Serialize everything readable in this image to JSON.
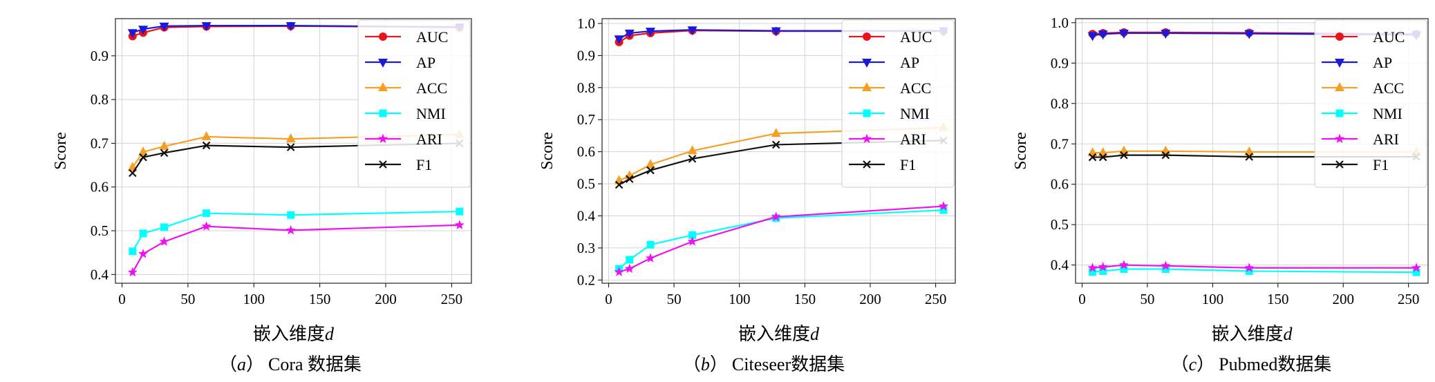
{
  "chart_data": [
    {
      "type": "line",
      "caption": {
        "letter": "a",
        "text": "Cora 数据集"
      },
      "xlabel": "嵌入维度",
      "xlabel_var": "d",
      "ylabel": "Score",
      "xlim": [
        -5,
        265
      ],
      "ylim": [
        0.38,
        0.985
      ],
      "xticks": [
        0,
        50,
        100,
        150,
        200,
        250
      ],
      "yticks": [
        0.4,
        0.5,
        0.6,
        0.7,
        0.8,
        0.9
      ],
      "grid": true,
      "legend_position": "top-right",
      "x": [
        8,
        16,
        32,
        64,
        128,
        256
      ],
      "series": [
        {
          "name": "AUC",
          "color": "#e8141a",
          "marker": "circle",
          "values": [
            0.945,
            0.953,
            0.965,
            0.967,
            0.968,
            0.965
          ]
        },
        {
          "name": "AP",
          "color": "#1a1adb",
          "marker": "triangle-down",
          "values": [
            0.953,
            0.961,
            0.968,
            0.969,
            0.969,
            0.966
          ]
        },
        {
          "name": "ACC",
          "color": "#f5a025",
          "marker": "triangle-up",
          "values": [
            0.645,
            0.68,
            0.693,
            0.715,
            0.71,
            0.72
          ]
        },
        {
          "name": "NMI",
          "color": "#00ffff",
          "marker": "square",
          "values": [
            0.453,
            0.494,
            0.508,
            0.54,
            0.536,
            0.544
          ]
        },
        {
          "name": "ARI",
          "color": "#f011f0",
          "marker": "star",
          "values": [
            0.405,
            0.447,
            0.475,
            0.51,
            0.501,
            0.513
          ]
        },
        {
          "name": "F1",
          "color": "#111111",
          "marker": "x",
          "values": [
            0.632,
            0.668,
            0.678,
            0.695,
            0.691,
            0.7
          ]
        }
      ]
    },
    {
      "type": "line",
      "caption": {
        "letter": "b",
        "text": "Citeseer数据集"
      },
      "xlabel": "嵌入维度",
      "xlabel_var": "d",
      "ylabel": "Score",
      "xlim": [
        -5,
        265
      ],
      "ylim": [
        0.19,
        1.015
      ],
      "xticks": [
        0,
        50,
        100,
        150,
        200,
        250
      ],
      "yticks": [
        0.2,
        0.3,
        0.4,
        0.5,
        0.6,
        0.7,
        0.8,
        0.9,
        1.0
      ],
      "grid": true,
      "legend_position": "top-right",
      "x": [
        8,
        16,
        32,
        64,
        128,
        256
      ],
      "series": [
        {
          "name": "AUC",
          "color": "#e8141a",
          "marker": "circle",
          "values": [
            0.942,
            0.962,
            0.97,
            0.978,
            0.976,
            0.976
          ]
        },
        {
          "name": "AP",
          "color": "#1a1adb",
          "marker": "triangle-down",
          "values": [
            0.952,
            0.97,
            0.976,
            0.98,
            0.977,
            0.977
          ]
        },
        {
          "name": "ACC",
          "color": "#f5a025",
          "marker": "triangle-up",
          "values": [
            0.51,
            0.525,
            0.56,
            0.603,
            0.657,
            0.675
          ]
        },
        {
          "name": "NMI",
          "color": "#00ffff",
          "marker": "square",
          "values": [
            0.235,
            0.263,
            0.31,
            0.34,
            0.393,
            0.418
          ]
        },
        {
          "name": "ARI",
          "color": "#f011f0",
          "marker": "star",
          "values": [
            0.225,
            0.235,
            0.268,
            0.32,
            0.397,
            0.43
          ]
        },
        {
          "name": "F1",
          "color": "#111111",
          "marker": "x",
          "values": [
            0.497,
            0.515,
            0.542,
            0.578,
            0.622,
            0.635
          ]
        }
      ]
    },
    {
      "type": "line",
      "caption": {
        "letter": "c",
        "text": "Pubmed数据集"
      },
      "xlabel": "嵌入维度",
      "xlabel_var": "d",
      "ylabel": "Score",
      "xlim": [
        -5,
        265
      ],
      "ylim": [
        0.355,
        1.01
      ],
      "xticks": [
        0,
        50,
        100,
        150,
        200,
        250
      ],
      "yticks": [
        0.4,
        0.5,
        0.6,
        0.7,
        0.8,
        0.9,
        1.0
      ],
      "grid": true,
      "legend_position": "top-right",
      "x": [
        8,
        16,
        32,
        64,
        128,
        256
      ],
      "series": [
        {
          "name": "AUC",
          "color": "#e8141a",
          "marker": "circle",
          "values": [
            0.972,
            0.974,
            0.976,
            0.976,
            0.975,
            0.972
          ]
        },
        {
          "name": "AP",
          "color": "#1a1adb",
          "marker": "triangle-down",
          "values": [
            0.968,
            0.972,
            0.974,
            0.974,
            0.973,
            0.97
          ]
        },
        {
          "name": "ACC",
          "color": "#f5a025",
          "marker": "triangle-up",
          "values": [
            0.678,
            0.678,
            0.682,
            0.682,
            0.68,
            0.68
          ]
        },
        {
          "name": "NMI",
          "color": "#00ffff",
          "marker": "square",
          "values": [
            0.383,
            0.385,
            0.39,
            0.39,
            0.385,
            0.382
          ]
        },
        {
          "name": "ARI",
          "color": "#f011f0",
          "marker": "star",
          "values": [
            0.393,
            0.395,
            0.4,
            0.398,
            0.393,
            0.393
          ]
        },
        {
          "name": "F1",
          "color": "#111111",
          "marker": "x",
          "values": [
            0.667,
            0.667,
            0.672,
            0.672,
            0.668,
            0.668
          ]
        }
      ]
    }
  ]
}
